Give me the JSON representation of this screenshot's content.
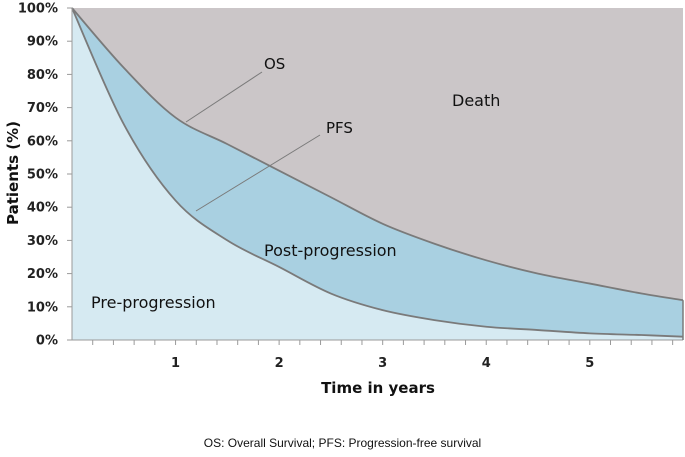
{
  "chart_data": {
    "type": "area",
    "xlabel": "Time in years",
    "ylabel": "Patients (%)",
    "xlim": [
      0,
      5.9
    ],
    "ylim": [
      0,
      100
    ],
    "x_ticks": [
      1,
      2,
      3,
      4,
      5
    ],
    "y_ticks": [
      0,
      10,
      20,
      30,
      40,
      50,
      60,
      70,
      80,
      90,
      100
    ],
    "y_tick_labels": [
      "0%",
      "10%",
      "20%",
      "30%",
      "40%",
      "50%",
      "60%",
      "70%",
      "80%",
      "90%",
      "100%"
    ],
    "grid": false,
    "series": [
      {
        "name": "OS",
        "x": [
          0,
          0.5,
          1,
          1.5,
          2,
          2.5,
          3,
          3.5,
          4,
          4.5,
          5,
          5.5,
          5.9
        ],
        "values": [
          100,
          82,
          67,
          59,
          51,
          43,
          35,
          29,
          24,
          20,
          17,
          14,
          12
        ]
      },
      {
        "name": "PFS",
        "x": [
          0,
          0.5,
          1,
          1.5,
          2,
          2.5,
          3,
          3.5,
          4,
          4.5,
          5,
          5.5,
          5.9
        ],
        "values": [
          100,
          65,
          42,
          30,
          22,
          14,
          9,
          6,
          4,
          3,
          2,
          1.5,
          1
        ]
      }
    ],
    "regions": [
      {
        "label": "Death",
        "color": "#cbc6c8"
      },
      {
        "label": "Post-progression",
        "color": "#a9d0e1"
      },
      {
        "label": "Pre-progression",
        "color": "#d6eaf2"
      }
    ],
    "curve_color": "#7a7a7a",
    "axis_color": "#9a9a9a"
  },
  "caption": "OS: Overall Survival; PFS: Progression-free survival"
}
